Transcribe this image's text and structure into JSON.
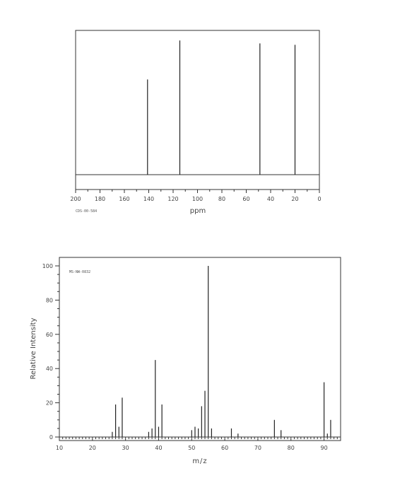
{
  "chart_data": [
    {
      "type": "bar",
      "subtype": "nmr-spectrum",
      "code": "CDS-00-584",
      "xlabel": "ppm",
      "ylabel": "",
      "xlim": [
        200,
        0
      ],
      "x_reversed": true,
      "xticks": [
        200,
        180,
        160,
        140,
        120,
        100,
        80,
        60,
        40,
        20,
        0
      ],
      "peaks": [
        {
          "x": 141.0,
          "y": 0.66
        },
        {
          "x": 114.5,
          "y": 0.93
        },
        {
          "x": 48.8,
          "y": 0.91
        },
        {
          "x": 20.0,
          "y": 0.9
        }
      ],
      "grid": false
    },
    {
      "type": "bar",
      "subtype": "mass-spectrum",
      "code": "MS-NW-0832",
      "xlabel": "m/z",
      "ylabel": "Relative Intensity",
      "xlim": [
        10,
        95
      ],
      "ylim": [
        0,
        100
      ],
      "xticks": [
        10,
        20,
        30,
        40,
        50,
        60,
        70,
        80,
        90
      ],
      "yticks": [
        0,
        20,
        40,
        60,
        80,
        100
      ],
      "peaks": [
        {
          "x": 26,
          "y": 3
        },
        {
          "x": 27,
          "y": 19
        },
        {
          "x": 28,
          "y": 6
        },
        {
          "x": 29,
          "y": 23
        },
        {
          "x": 37,
          "y": 3
        },
        {
          "x": 38,
          "y": 5
        },
        {
          "x": 39,
          "y": 45
        },
        {
          "x": 40,
          "y": 6
        },
        {
          "x": 41,
          "y": 19
        },
        {
          "x": 50,
          "y": 4
        },
        {
          "x": 51,
          "y": 6
        },
        {
          "x": 52,
          "y": 5
        },
        {
          "x": 53,
          "y": 18
        },
        {
          "x": 54,
          "y": 27
        },
        {
          "x": 55,
          "y": 100
        },
        {
          "x": 56,
          "y": 5
        },
        {
          "x": 62,
          "y": 5
        },
        {
          "x": 64,
          "y": 2
        },
        {
          "x": 75,
          "y": 10
        },
        {
          "x": 77,
          "y": 4
        },
        {
          "x": 90,
          "y": 32
        },
        {
          "x": 91,
          "y": 2
        },
        {
          "x": 92,
          "y": 10
        }
      ],
      "grid": false
    }
  ]
}
